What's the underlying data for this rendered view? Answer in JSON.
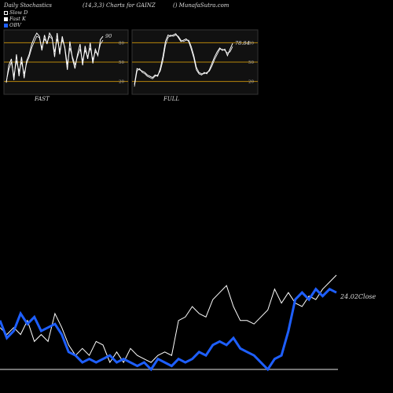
{
  "header": {
    "left": "Daily Stochastics",
    "center": "(14,3,3) Charts for GAINZ",
    "right": "() MunafaSutra.com"
  },
  "legend": [
    {
      "label": "Slow D",
      "swatch": "white-box"
    },
    {
      "label": "Fast K",
      "swatch": "white-fill"
    },
    {
      "label": "OBV",
      "swatch": "blue-fill"
    }
  ],
  "colors": {
    "background": "#000000",
    "panel": "#111111",
    "levels": "#b8860b",
    "stoch": "#ffffff",
    "obv": "#1e5fff",
    "price": "#ffffff"
  },
  "chart_data": [
    {
      "type": "line",
      "panel": "fast",
      "title": "FAST",
      "ylim": [
        0,
        100
      ],
      "levels": [
        80,
        50,
        20
      ],
      "level_labels": [
        "80",
        "50",
        "20"
      ],
      "last_label": "90",
      "series": [
        {
          "values": [
            18,
            45,
            55,
            22,
            62,
            28,
            58,
            25,
            52,
            62,
            78,
            88,
            95,
            90,
            68,
            92,
            78,
            95,
            88,
            58,
            95,
            62,
            90,
            72,
            38,
            82,
            55,
            40,
            62,
            78,
            45,
            75,
            55,
            80,
            48,
            70,
            60,
            85,
            90
          ]
        },
        {
          "values": [
            20,
            38,
            50,
            28,
            52,
            36,
            50,
            32,
            48,
            58,
            72,
            82,
            90,
            88,
            72,
            86,
            80,
            90,
            86,
            66,
            86,
            68,
            84,
            74,
            46,
            72,
            58,
            46,
            58,
            70,
            52,
            68,
            58,
            72,
            54,
            66,
            62,
            78,
            84
          ]
        }
      ]
    },
    {
      "type": "line",
      "panel": "full",
      "title": "FULL",
      "ylim": [
        0,
        100
      ],
      "levels": [
        80,
        50,
        20
      ],
      "level_labels": [
        "80",
        "50",
        "20"
      ],
      "last_label": "78.84",
      "series": [
        {
          "values": [
            15,
            40,
            38,
            36,
            34,
            30,
            28,
            26,
            30,
            28,
            40,
            58,
            82,
            92,
            90,
            92,
            94,
            88,
            82,
            84,
            86,
            82,
            70,
            56,
            38,
            32,
            30,
            34,
            32,
            38,
            48,
            58,
            66,
            72,
            68,
            70,
            60,
            70,
            79
          ]
        },
        {
          "values": [
            12,
            36,
            40,
            34,
            32,
            28,
            26,
            24,
            28,
            30,
            36,
            52,
            76,
            88,
            92,
            90,
            92,
            90,
            84,
            82,
            84,
            84,
            74,
            60,
            42,
            34,
            32,
            32,
            34,
            36,
            44,
            54,
            62,
            70,
            70,
            68,
            64,
            66,
            74
          ]
        }
      ]
    },
    {
      "type": "line",
      "panel": "price-obv",
      "close_label": "24.02",
      "close_suffix": "Close",
      "series": [
        {
          "values": [
            22,
            20,
            22,
            20,
            24,
            18,
            20,
            18,
            26,
            22,
            17,
            14,
            16,
            14,
            18,
            17,
            12,
            15,
            12,
            16,
            14,
            13,
            12,
            14,
            15,
            14,
            24,
            25,
            28,
            26,
            25,
            30,
            32,
            34,
            28,
            24,
            24,
            23,
            25,
            27,
            33,
            29,
            32,
            29,
            28,
            31,
            30,
            33,
            35,
            37
          ]
        },
        {
          "values": [
            24,
            19,
            21,
            26,
            23,
            25,
            21,
            22,
            23,
            20,
            15,
            14,
            12,
            13,
            12,
            13,
            14,
            12,
            13,
            12,
            11,
            12,
            10,
            13,
            12,
            11,
            13,
            12,
            13,
            15,
            14,
            17,
            18,
            17,
            19,
            16,
            15,
            14,
            12,
            10,
            13,
            14,
            21,
            30,
            32,
            30,
            33,
            31,
            33,
            32
          ]
        }
      ]
    }
  ]
}
